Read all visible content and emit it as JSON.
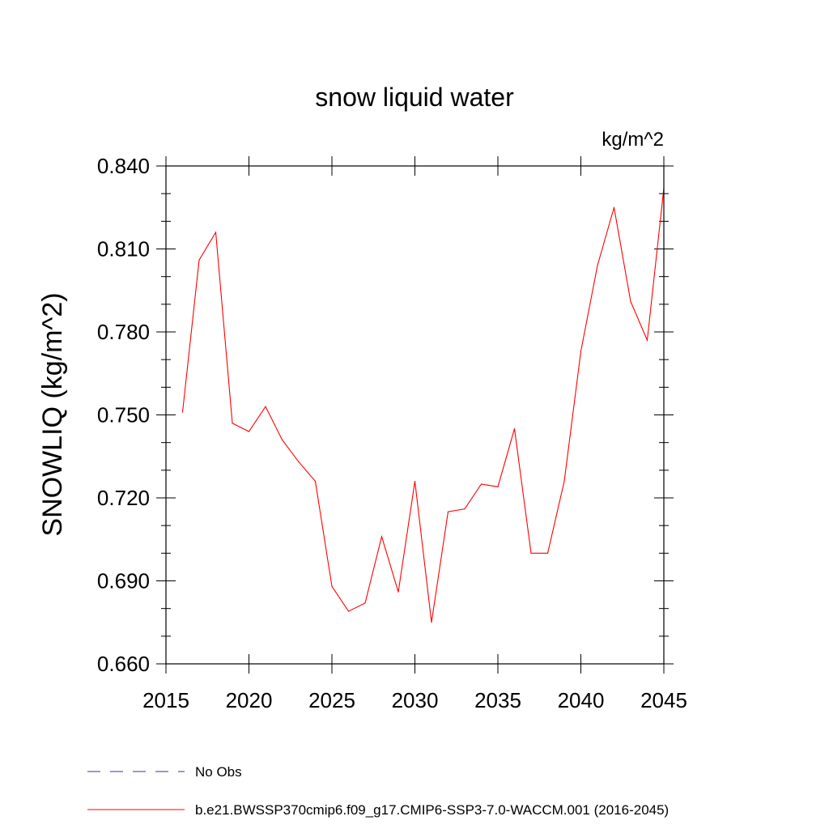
{
  "chart_data": {
    "type": "line",
    "title": "snow liquid water",
    "units_label": "kg/m^2",
    "ylabel": "SNOWLIQ  (kg/m^2)",
    "xlabel": "",
    "xlim": [
      2015,
      2045
    ],
    "ylim": [
      0.66,
      0.84
    ],
    "x_ticks": [
      2015,
      2020,
      2025,
      2030,
      2035,
      2040,
      2045
    ],
    "x_tick_labels": [
      "2015",
      "2020",
      "2025",
      "2030",
      "2035",
      "2040",
      "2045"
    ],
    "y_ticks": [
      0.66,
      0.69,
      0.72,
      0.75,
      0.78,
      0.81,
      0.84
    ],
    "y_tick_labels": [
      "0.660",
      "0.690",
      "0.720",
      "0.750",
      "0.780",
      "0.810",
      "0.840"
    ],
    "grid": false,
    "legend_position": "bottom",
    "series": [
      {
        "name": "b.e21.BWSSP370cmip6.f09_g17.CMIP6-SSP3-7.0-WACCM.001 (2016-2045)",
        "color": "#ff0000",
        "style": "solid",
        "x": [
          2016,
          2017,
          2018,
          2019,
          2020,
          2021,
          2022,
          2023,
          2024,
          2025,
          2026,
          2027,
          2028,
          2029,
          2030,
          2031,
          2032,
          2033,
          2034,
          2035,
          2036,
          2037,
          2038,
          2039,
          2040,
          2041,
          2042,
          2043,
          2044,
          2045
        ],
        "values": [
          0.751,
          0.806,
          0.816,
          0.747,
          0.744,
          0.753,
          0.741,
          0.733,
          0.726,
          0.688,
          0.679,
          0.682,
          0.706,
          0.686,
          0.726,
          0.675,
          0.715,
          0.716,
          0.725,
          0.724,
          0.745,
          0.7,
          0.7,
          0.726,
          0.773,
          0.804,
          0.825,
          0.791,
          0.777,
          0.832
        ]
      }
    ],
    "legend": [
      {
        "label": "No Obs",
        "color": "#3333aa",
        "style": "dashed"
      },
      {
        "label": "b.e21.BWSSP370cmip6.f09_g17.CMIP6-SSP3-7.0-WACCM.001 (2016-2045)",
        "color": "#ff0000",
        "style": "solid"
      }
    ]
  }
}
